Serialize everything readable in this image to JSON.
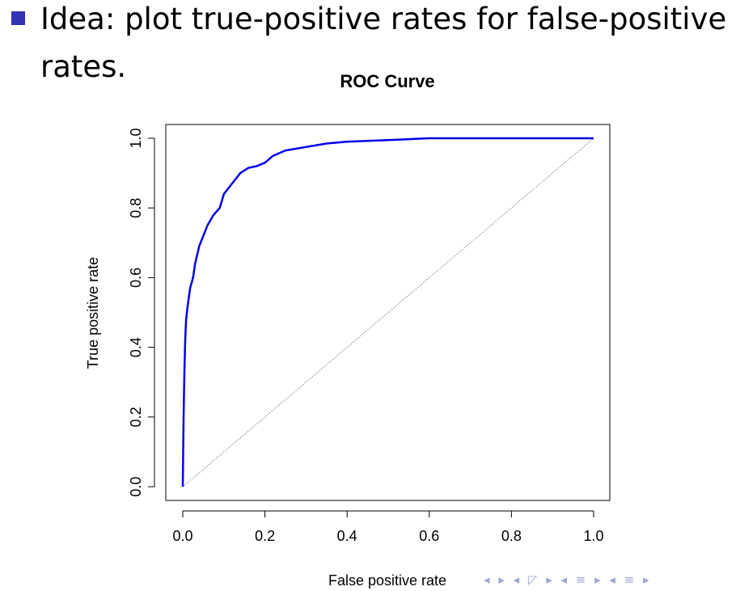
{
  "slide": {
    "bullet_text": "Idea: plot true-positive rates for false-positive rates.",
    "nav_symbols": "◂ ▸ ◂ ◸ ▸ ◂ ≡ ▸ ◂ ≡ ▸"
  },
  "colors": {
    "bullet": "#3333b3",
    "curve": "#0000ee",
    "diagonal": "#555555"
  },
  "chart_data": {
    "type": "line",
    "title": "ROC Curve",
    "xlabel": "False positive rate",
    "ylabel": "True positive rate",
    "xlim": [
      0,
      1
    ],
    "ylim": [
      0,
      1
    ],
    "xticks": [
      "0.0",
      "0.2",
      "0.4",
      "0.6",
      "0.8",
      "1.0"
    ],
    "yticks": [
      "0.0",
      "0.2",
      "0.4",
      "0.6",
      "0.8",
      "1.0"
    ],
    "grid": false,
    "series": [
      {
        "x": [
          0,
          0.002,
          0.004,
          0.006,
          0.008,
          0.012,
          0.018,
          0.025,
          0.03,
          0.04,
          0.05,
          0.06,
          0.075,
          0.09,
          0.1,
          0.12,
          0.14,
          0.16,
          0.18,
          0.2,
          0.22,
          0.25,
          0.3,
          0.35,
          0.4,
          0.5,
          0.6,
          0.8,
          1.0
        ],
        "y": [
          0,
          0.2,
          0.33,
          0.42,
          0.48,
          0.52,
          0.57,
          0.6,
          0.64,
          0.69,
          0.72,
          0.75,
          0.78,
          0.8,
          0.84,
          0.87,
          0.9,
          0.915,
          0.92,
          0.93,
          0.95,
          0.965,
          0.975,
          0.985,
          0.99,
          0.995,
          1.0,
          1.0,
          1.0
        ]
      },
      {
        "x": [
          0,
          1
        ],
        "y": [
          0,
          1
        ]
      }
    ]
  }
}
